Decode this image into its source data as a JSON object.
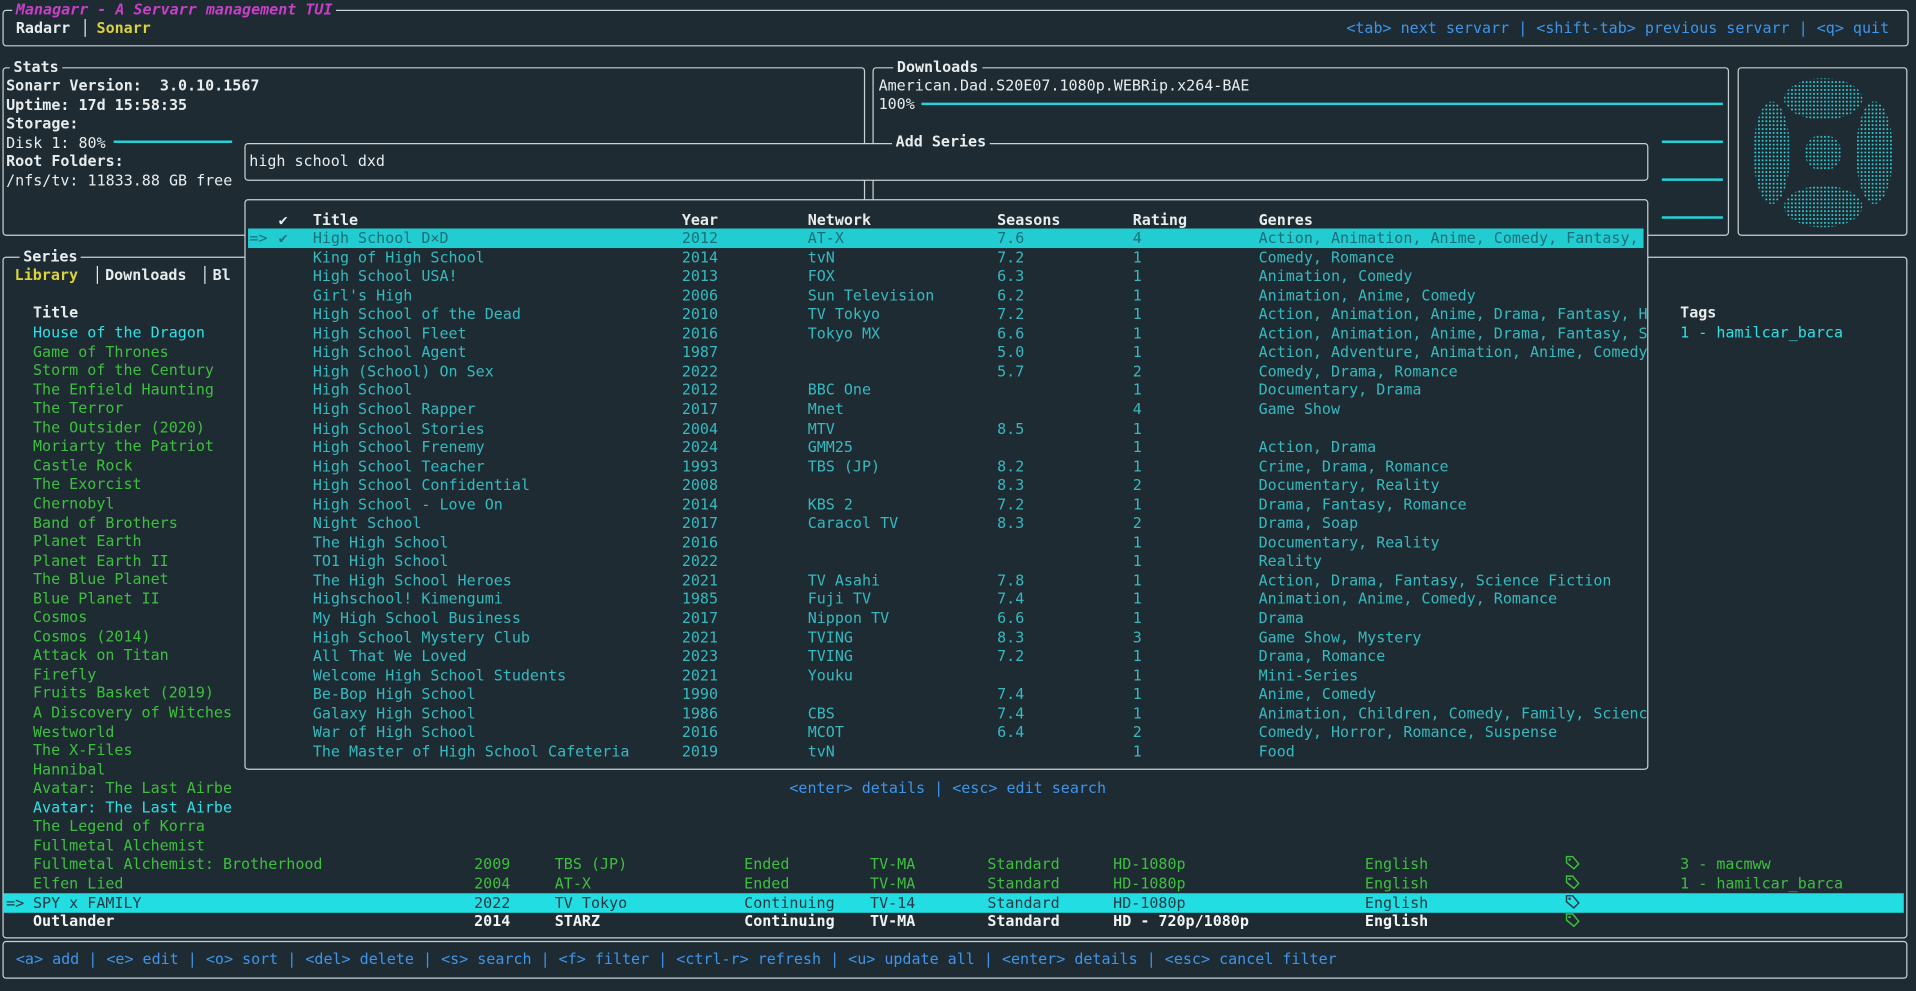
{
  "header": {
    "title": "Managarr - A Servarr management TUI",
    "tabs": [
      "Radarr",
      "Sonarr"
    ],
    "separator": "│",
    "help": "<tab> next servarr | <shift-tab> previous servarr | <q> quit"
  },
  "stats": {
    "title": "Stats",
    "lines": [
      "Sonarr Version:  3.0.10.1567",
      "Uptime: 17d 15:58:35",
      "Storage:",
      "Disk 1: 80%",
      "Root Folders:",
      "/nfs/tv: 11833.88 GB free"
    ]
  },
  "downloads": {
    "title": "Downloads",
    "items": [
      {
        "name": "American.Dad.S20E07.1080p.WEBRip.x264-BAE",
        "progress": "100%"
      }
    ]
  },
  "series": {
    "title": "Series",
    "tabs": [
      "Library",
      "Downloads",
      "Bl"
    ],
    "tab_separator": "│",
    "columns": {
      "title": "Title",
      "tags": "Tags"
    },
    "selected_marker": "=>",
    "rows": [
      {
        "title": "House of the Dragon",
        "color": "cyan",
        "tags": "1 - hamilcar_barca"
      },
      {
        "title": "Game of Thrones",
        "color": "green"
      },
      {
        "title": "Storm of the Century",
        "color": "green"
      },
      {
        "title": "The Enfield Haunting",
        "color": "green"
      },
      {
        "title": "The Terror",
        "color": "green"
      },
      {
        "title": "The Outsider (2020)",
        "color": "green"
      },
      {
        "title": "Moriarty the Patriot",
        "color": "green"
      },
      {
        "title": "Castle Rock",
        "color": "green"
      },
      {
        "title": "The Exorcist",
        "color": "green"
      },
      {
        "title": "Chernobyl",
        "color": "green"
      },
      {
        "title": "Band of Brothers",
        "color": "green"
      },
      {
        "title": "Planet Earth",
        "color": "green"
      },
      {
        "title": "Planet Earth II",
        "color": "green"
      },
      {
        "title": "The Blue Planet",
        "color": "green"
      },
      {
        "title": "Blue Planet II",
        "color": "green"
      },
      {
        "title": "Cosmos",
        "color": "green"
      },
      {
        "title": "Cosmos (2014)",
        "color": "green"
      },
      {
        "title": "Attack on Titan",
        "color": "green"
      },
      {
        "title": "Firefly",
        "color": "green"
      },
      {
        "title": "Fruits Basket (2019)",
        "color": "green"
      },
      {
        "title": "A Discovery of Witches",
        "color": "green"
      },
      {
        "title": "Westworld",
        "color": "green"
      },
      {
        "title": "The X-Files",
        "color": "green"
      },
      {
        "title": "Hannibal",
        "color": "green"
      },
      {
        "title": "Avatar: The Last Airbe",
        "color": "green"
      },
      {
        "title": "Avatar: The Last Airbe",
        "color": "cyan"
      },
      {
        "title": "The Legend of Korra",
        "color": "green"
      },
      {
        "title": "Fullmetal Alchemist",
        "color": "green"
      },
      {
        "title": "Fullmetal Alchemist: Brotherhood",
        "color": "green",
        "year": "2009",
        "network": "TBS (JP)",
        "status": "Ended",
        "rating": "TV-MA",
        "type": "Standard",
        "quality": "HD-1080p",
        "language": "English",
        "monitored": true,
        "tags": "3 - macmww"
      },
      {
        "title": "Elfen Lied",
        "color": "green",
        "year": "2004",
        "network": "AT-X",
        "status": "Ended",
        "rating": "TV-MA",
        "type": "Standard",
        "quality": "HD-1080p",
        "language": "English",
        "monitored": true,
        "tags": "1 - hamilcar_barca"
      },
      {
        "title": "SPY x FAMILY",
        "color": "cyan",
        "selected": true,
        "year": "2022",
        "network": "TV Tokyo",
        "status": "Continuing",
        "rating": "TV-14",
        "type": "Standard",
        "quality": "HD-1080p",
        "language": "English",
        "monitored": true
      },
      {
        "title": "Outlander",
        "color": "white",
        "year": "2014",
        "network": "STARZ",
        "status": "Continuing",
        "rating": "TV-MA",
        "type": "Standard",
        "quality": "HD - 720p/1080p",
        "language": "English",
        "monitored": true
      }
    ],
    "help": "<a> add | <e> edit | <o> sort | <del> delete | <s> search | <f> filter | <ctrl-r> refresh | <u> update all | <enter> details | <esc> cancel filter"
  },
  "add_series": {
    "title": "Add Series",
    "query": "high school dxd",
    "selected_marker": "=>",
    "selected_row": 0,
    "columns": [
      "✔",
      "Title",
      "Year",
      "Network",
      "Seasons",
      "Rating",
      "Genres"
    ],
    "rows": [
      [
        "✔",
        "High School D×D",
        "2012",
        "AT-X",
        "7.6",
        "4",
        "Action, Animation, Anime, Comedy, Fantasy,"
      ],
      [
        null,
        "King of High School",
        "2014",
        "tvN",
        "7.2",
        "1",
        "Comedy, Romance"
      ],
      [
        null,
        "High School USA!",
        "2013",
        "FOX",
        "6.3",
        "1",
        "Animation, Comedy"
      ],
      [
        null,
        "Girl's High",
        "2006",
        "Sun Television",
        "6.2",
        "1",
        "Animation, Anime, Comedy"
      ],
      [
        null,
        "High School of the Dead",
        "2010",
        "TV Tokyo",
        "7.2",
        "1",
        "Action, Animation, Anime, Drama, Fantasy, H"
      ],
      [
        null,
        "High School Fleet",
        "2016",
        "Tokyo MX",
        "6.6",
        "1",
        "Action, Animation, Anime, Drama, Fantasy, S"
      ],
      [
        null,
        "High School Agent",
        "1987",
        null,
        "5.0",
        "1",
        "Action, Adventure, Animation, Anime, Comedy"
      ],
      [
        null,
        "High (School) On Sex",
        "2022",
        null,
        "5.7",
        "2",
        "Comedy, Drama, Romance"
      ],
      [
        null,
        "High School",
        "2012",
        "BBC One",
        null,
        "1",
        "Documentary, Drama"
      ],
      [
        null,
        "High School Rapper",
        "2017",
        "Mnet",
        null,
        "4",
        "Game Show"
      ],
      [
        null,
        "High School Stories",
        "2004",
        "MTV",
        "8.5",
        "1",
        null
      ],
      [
        null,
        "High School Frenemy",
        "2024",
        "GMM25",
        null,
        "1",
        "Action, Drama"
      ],
      [
        null,
        "High School Teacher",
        "1993",
        "TBS (JP)",
        "8.2",
        "1",
        "Crime, Drama, Romance"
      ],
      [
        null,
        "High School Confidential",
        "2008",
        null,
        "8.3",
        "2",
        "Documentary, Reality"
      ],
      [
        null,
        "High School - Love On",
        "2014",
        "KBS 2",
        "7.2",
        "1",
        "Drama, Fantasy, Romance"
      ],
      [
        null,
        "Night School",
        "2017",
        "Caracol TV",
        "8.3",
        "2",
        "Drama, Soap"
      ],
      [
        null,
        "The High School",
        "2016",
        null,
        null,
        "1",
        "Documentary, Reality"
      ],
      [
        null,
        "TO1 High School",
        "2022",
        null,
        null,
        "1",
        "Reality"
      ],
      [
        null,
        "The High School Heroes",
        "2021",
        "TV Asahi",
        "7.8",
        "1",
        "Action, Drama, Fantasy, Science Fiction"
      ],
      [
        null,
        "Highschool! Kimengumi",
        "1985",
        "Fuji TV",
        "7.4",
        "1",
        "Animation, Anime, Comedy, Romance"
      ],
      [
        null,
        "My High School Business",
        "2017",
        "Nippon TV",
        "6.6",
        "1",
        "Drama"
      ],
      [
        null,
        "High School Mystery Club",
        "2021",
        "TVING",
        "8.3",
        "3",
        "Game Show, Mystery"
      ],
      [
        null,
        "All That We Loved",
        "2023",
        "TVING",
        "7.2",
        "1",
        "Drama, Romance"
      ],
      [
        null,
        "Welcome High School Students",
        "2021",
        "Youku",
        null,
        "1",
        "Mini-Series"
      ],
      [
        null,
        "Be-Bop High School",
        "1990",
        null,
        "7.4",
        "1",
        "Anime, Comedy"
      ],
      [
        null,
        "Galaxy High School",
        "1986",
        "CBS",
        "7.4",
        "1",
        "Animation, Children, Comedy, Family, Scienc"
      ],
      [
        null,
        "War of High School",
        "2016",
        "MCOT",
        "6.4",
        "2",
        "Comedy, Horror, Romance, Suspense"
      ],
      [
        null,
        "The Master of High School Cafeteria",
        "2019",
        "tvN",
        null,
        "1",
        "Food"
      ]
    ],
    "help": "<enter> details | <esc> edit search"
  }
}
